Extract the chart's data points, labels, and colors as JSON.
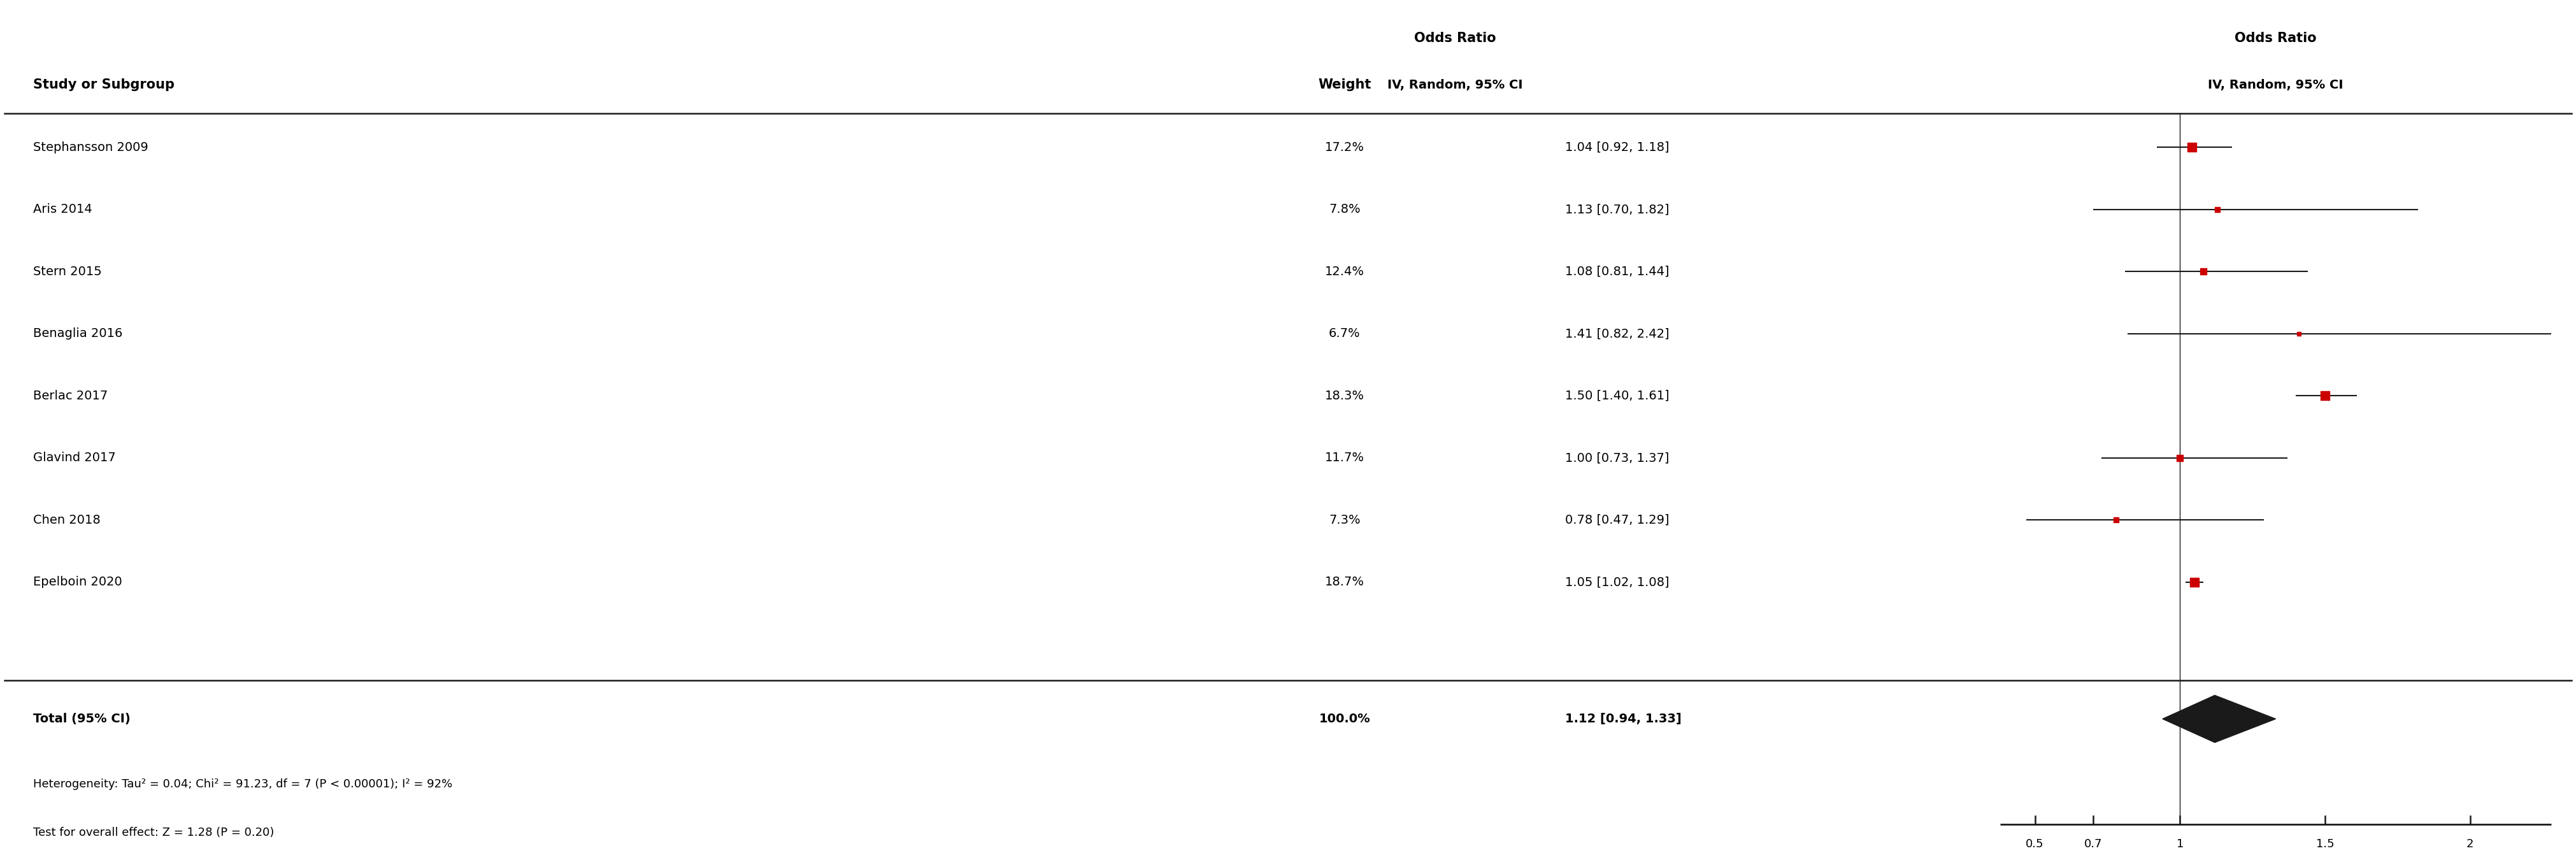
{
  "studies": [
    {
      "name": "Stephansson 2009",
      "weight": "17.2%",
      "or": 1.04,
      "ci_low": 0.92,
      "ci_high": 1.18,
      "label": "1.04 [0.92, 1.18]"
    },
    {
      "name": "Aris 2014",
      "weight": "7.8%",
      "or": 1.13,
      "ci_low": 0.7,
      "ci_high": 1.82,
      "label": "1.13 [0.70, 1.82]"
    },
    {
      "name": "Stern 2015",
      "weight": "12.4%",
      "or": 1.08,
      "ci_low": 0.81,
      "ci_high": 1.44,
      "label": "1.08 [0.81, 1.44]"
    },
    {
      "name": "Benaglia 2016",
      "weight": "6.7%",
      "or": 1.41,
      "ci_low": 0.82,
      "ci_high": 2.42,
      "label": "1.41 [0.82, 2.42]"
    },
    {
      "name": "Berlac 2017",
      "weight": "18.3%",
      "or": 1.5,
      "ci_low": 1.4,
      "ci_high": 1.61,
      "label": "1.50 [1.40, 1.61]"
    },
    {
      "name": "Glavind 2017",
      "weight": "11.7%",
      "or": 1.0,
      "ci_low": 0.73,
      "ci_high": 1.37,
      "label": "1.00 [0.73, 1.37]"
    },
    {
      "name": "Chen 2018",
      "weight": "7.3%",
      "or": 0.78,
      "ci_low": 0.47,
      "ci_high": 1.29,
      "label": "0.78 [0.47, 1.29]"
    },
    {
      "name": "Epelboin 2020",
      "weight": "18.7%",
      "or": 1.05,
      "ci_low": 1.02,
      "ci_high": 1.08,
      "label": "1.05 [1.02, 1.08]"
    }
  ],
  "total": {
    "name": "Total (95% CI)",
    "weight": "100.0%",
    "or": 1.12,
    "ci_low": 0.94,
    "ci_high": 1.33,
    "label": "1.12 [0.94, 1.33]"
  },
  "heterogeneity_text": "Heterogeneity: Tau² = 0.04; Chi² = 91.23, df = 7 (P < 0.00001); I² = 92%",
  "test_text": "Test for overall effect: Z = 1.28 (P = 0.20)",
  "col_header_study": "Study or Subgroup",
  "col_header_weight": "Weight",
  "col_header_or_text": "Odds Ratio",
  "col_header_or_sub": "IV, Random, 95% CI",
  "col_header_plot_title": "Odds Ratio",
  "col_header_plot_sub": "IV, Random, 95% CI",
  "xticks": [
    0.5,
    0.7,
    1.0,
    1.5,
    2.0
  ],
  "xtick_labels": [
    "0.5",
    "0.7",
    "1",
    "1.5",
    "2"
  ],
  "xplot_min": 0.38,
  "xplot_max": 2.28,
  "marker_color": "#cc0000",
  "diamond_color": "#1a1a1a",
  "line_color": "#1a1a1a",
  "bg_color": "#ffffff",
  "text_color": "#000000",
  "fontsize": 14,
  "fontsize_header": 15
}
